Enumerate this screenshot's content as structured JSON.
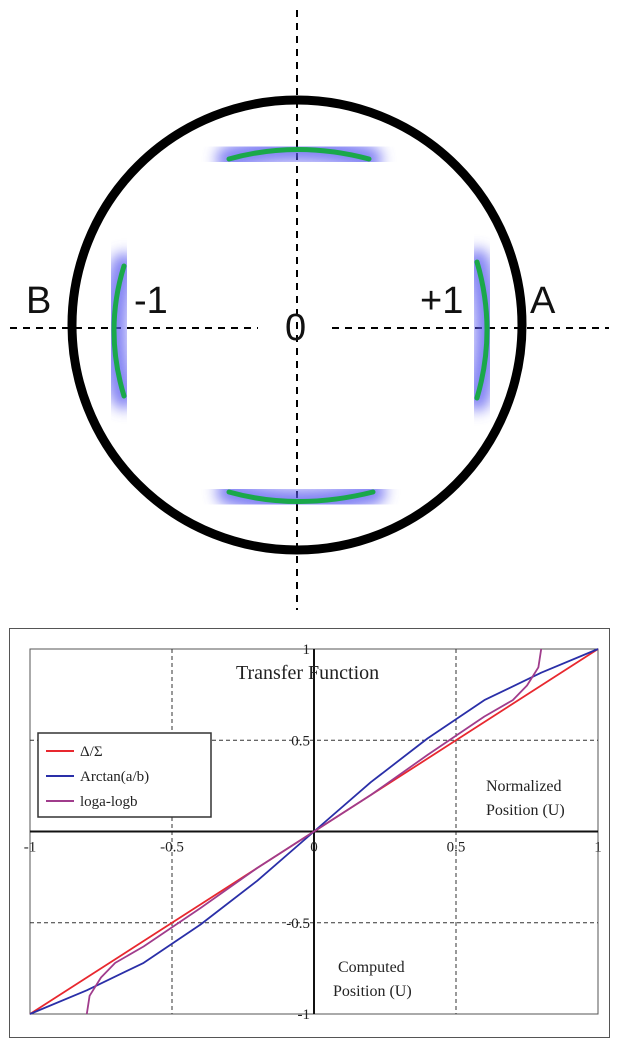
{
  "diagram": {
    "labels": {
      "left": "B",
      "right": "A",
      "minus": "-1",
      "plus": "+1",
      "center": "0"
    },
    "colors": {
      "ring": "#000000",
      "electrode": "#1aa84a",
      "glow": "#5a5af0"
    }
  },
  "chart_data": {
    "type": "line",
    "title": "Transfer Function",
    "xlabel": "Normalized Position (U)",
    "xlabel_lines": [
      "Normalized",
      "Position (U)"
    ],
    "ylabel": "Computed Position (U)",
    "ylabel_lines": [
      "Computed",
      "Position (U)"
    ],
    "xlim": [
      -1,
      1
    ],
    "ylim": [
      -1,
      1
    ],
    "x_ticks": [
      "-1",
      "-0.5",
      "0",
      "0.5",
      "1"
    ],
    "y_ticks": [
      "1",
      "0.5",
      "0",
      "-0.5",
      "-1"
    ],
    "grid": true,
    "legend_position": "left",
    "series": [
      {
        "name": "Δ/Σ",
        "color": "#e8282f",
        "x": [
          -1,
          -0.5,
          0,
          0.5,
          1
        ],
        "y": [
          -1,
          -0.5,
          0,
          0.5,
          1
        ]
      },
      {
        "name": "Arctan(a/b)",
        "color": "#2a2fa8",
        "x": [
          -1,
          -0.8,
          -0.6,
          -0.4,
          -0.2,
          0,
          0.2,
          0.4,
          0.6,
          0.8,
          1
        ],
        "y": [
          -1,
          -0.87,
          -0.72,
          -0.51,
          -0.27,
          0,
          0.27,
          0.51,
          0.72,
          0.87,
          1
        ]
      },
      {
        "name": "loga-logb",
        "color": "#a03c8c",
        "x": [
          -0.8,
          -0.79,
          -0.75,
          -0.7,
          -0.6,
          -0.4,
          -0.2,
          0,
          0.2,
          0.4,
          0.6,
          0.7,
          0.75,
          0.79,
          0.8
        ],
        "y": [
          -1,
          -0.9,
          -0.8,
          -0.72,
          -0.63,
          -0.42,
          -0.2,
          0,
          0.2,
          0.42,
          0.63,
          0.72,
          0.8,
          0.9,
          1
        ]
      }
    ]
  }
}
